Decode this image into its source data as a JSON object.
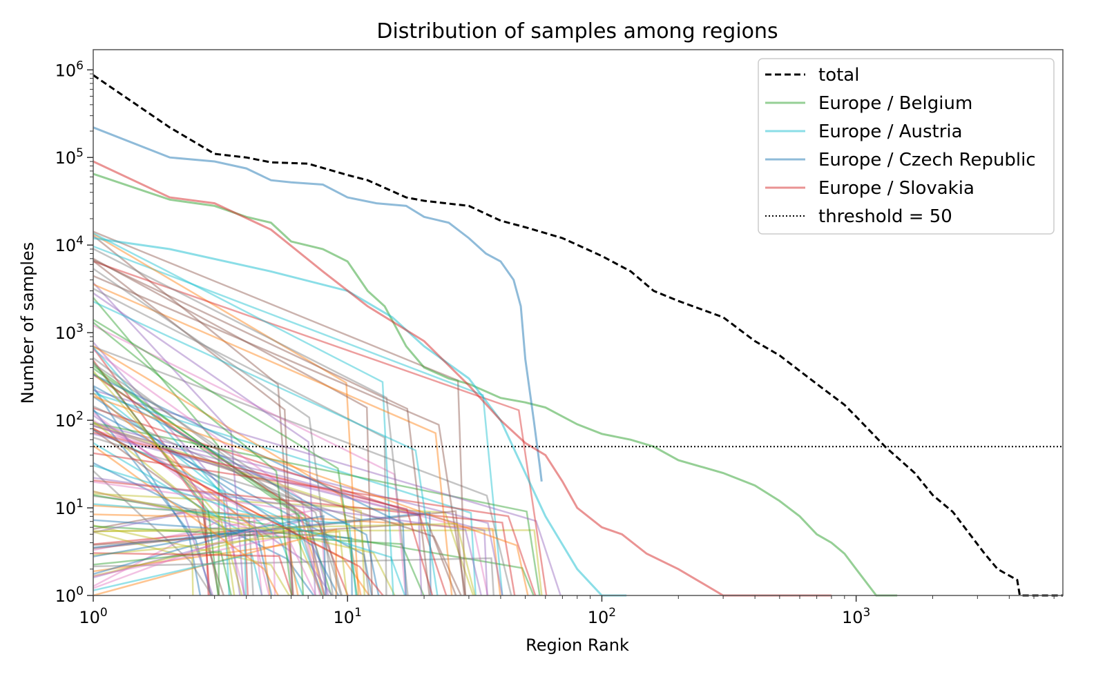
{
  "chart_data": {
    "type": "line",
    "title": "Distribution of samples among regions",
    "xlabel": "Region Rank",
    "ylabel": "Number of samples",
    "x_scale": "log",
    "y_scale": "log",
    "xlim": [
      1,
      6500
    ],
    "ylim": [
      1,
      1700000
    ],
    "x_ticks": [
      {
        "value": 1,
        "base": "10",
        "exp": "0"
      },
      {
        "value": 10,
        "base": "10",
        "exp": "1"
      },
      {
        "value": 100,
        "base": "10",
        "exp": "2"
      },
      {
        "value": 1000,
        "base": "10",
        "exp": "3"
      }
    ],
    "y_ticks": [
      {
        "value": 1,
        "base": "10",
        "exp": "0"
      },
      {
        "value": 10,
        "base": "10",
        "exp": "1"
      },
      {
        "value": 100,
        "base": "10",
        "exp": "2"
      },
      {
        "value": 1000,
        "base": "10",
        "exp": "3"
      },
      {
        "value": 10000,
        "base": "10",
        "exp": "4"
      },
      {
        "value": 100000,
        "base": "10",
        "exp": "5"
      },
      {
        "value": 1000000,
        "base": "10",
        "exp": "6"
      }
    ],
    "grid": false,
    "legend_position": "top-right",
    "series": [
      {
        "name": "total",
        "color": "#000000",
        "style": "dashed",
        "points": [
          [
            1,
            870000
          ],
          [
            2,
            220000
          ],
          [
            3,
            110000
          ],
          [
            4,
            100000
          ],
          [
            5,
            88000
          ],
          [
            7,
            85000
          ],
          [
            10,
            63000
          ],
          [
            12,
            55000
          ],
          [
            17,
            35000
          ],
          [
            20,
            32000
          ],
          [
            30,
            28000
          ],
          [
            40,
            19000
          ],
          [
            50,
            16000
          ],
          [
            70,
            12000
          ],
          [
            100,
            7500
          ],
          [
            130,
            5000
          ],
          [
            160,
            3000
          ],
          [
            200,
            2300
          ],
          [
            300,
            1500
          ],
          [
            400,
            800
          ],
          [
            500,
            550
          ],
          [
            700,
            260
          ],
          [
            900,
            150
          ],
          [
            1000,
            110
          ],
          [
            1300,
            50
          ],
          [
            1700,
            25
          ],
          [
            2000,
            14
          ],
          [
            2400,
            9
          ],
          [
            2800,
            5
          ],
          [
            3200,
            3
          ],
          [
            3600,
            2
          ],
          [
            4300,
            1.5
          ],
          [
            4400,
            1
          ],
          [
            6500,
            1
          ]
        ]
      },
      {
        "name": "Europe / Belgium",
        "color": "#2ca02c",
        "style": "solid",
        "points": [
          [
            1,
            65000
          ],
          [
            2,
            33000
          ],
          [
            3,
            28000
          ],
          [
            4,
            21000
          ],
          [
            5,
            18000
          ],
          [
            6,
            11000
          ],
          [
            8,
            9000
          ],
          [
            10,
            6500
          ],
          [
            12,
            3000
          ],
          [
            14,
            2000
          ],
          [
            17,
            700
          ],
          [
            20,
            400
          ],
          [
            25,
            300
          ],
          [
            30,
            260
          ],
          [
            40,
            180
          ],
          [
            50,
            160
          ],
          [
            60,
            140
          ],
          [
            80,
            90
          ],
          [
            100,
            70
          ],
          [
            130,
            60
          ],
          [
            160,
            50
          ],
          [
            200,
            35
          ],
          [
            300,
            25
          ],
          [
            400,
            18
          ],
          [
            500,
            12
          ],
          [
            600,
            8
          ],
          [
            700,
            5
          ],
          [
            800,
            4
          ],
          [
            900,
            3
          ],
          [
            1000,
            2
          ],
          [
            1200,
            1
          ],
          [
            1450,
            1
          ]
        ]
      },
      {
        "name": "Europe / Austria",
        "color": "#17becf",
        "style": "solid",
        "points": [
          [
            1,
            12000
          ],
          [
            2,
            9000
          ],
          [
            5,
            5000
          ],
          [
            10,
            3000
          ],
          [
            15,
            1500
          ],
          [
            20,
            700
          ],
          [
            30,
            300
          ],
          [
            40,
            100
          ],
          [
            60,
            8
          ],
          [
            80,
            2
          ],
          [
            100,
            1
          ],
          [
            125,
            1
          ]
        ]
      },
      {
        "name": "Europe / Czech Republic",
        "color": "#1f77b4",
        "style": "solid",
        "points": [
          [
            1,
            220000
          ],
          [
            2,
            100000
          ],
          [
            3,
            90000
          ],
          [
            4,
            75000
          ],
          [
            5,
            55000
          ],
          [
            6,
            52000
          ],
          [
            8,
            49000
          ],
          [
            10,
            35000
          ],
          [
            13,
            30000
          ],
          [
            17,
            28000
          ],
          [
            20,
            21000
          ],
          [
            25,
            18000
          ],
          [
            30,
            12000
          ],
          [
            35,
            8000
          ],
          [
            40,
            6500
          ],
          [
            45,
            4000
          ],
          [
            48,
            2000
          ],
          [
            50,
            500
          ],
          [
            54,
            100
          ],
          [
            57,
            30
          ],
          [
            58,
            20
          ]
        ]
      },
      {
        "name": "Europe / Slovakia",
        "color": "#d62728",
        "style": "solid",
        "points": [
          [
            1,
            90000
          ],
          [
            2,
            35000
          ],
          [
            3,
            30000
          ],
          [
            5,
            15000
          ],
          [
            8,
            5000
          ],
          [
            12,
            2000
          ],
          [
            20,
            800
          ],
          [
            30,
            250
          ],
          [
            40,
            100
          ],
          [
            50,
            55
          ],
          [
            60,
            40
          ],
          [
            70,
            20
          ],
          [
            80,
            10
          ],
          [
            100,
            6
          ],
          [
            120,
            5
          ],
          [
            150,
            3
          ],
          [
            200,
            2
          ],
          [
            300,
            1
          ],
          [
            800,
            1
          ]
        ]
      },
      {
        "name": "threshold = 50",
        "color": "#000000",
        "style": "dotted",
        "points": [
          [
            1,
            50
          ],
          [
            6500,
            50
          ]
        ]
      }
    ]
  }
}
